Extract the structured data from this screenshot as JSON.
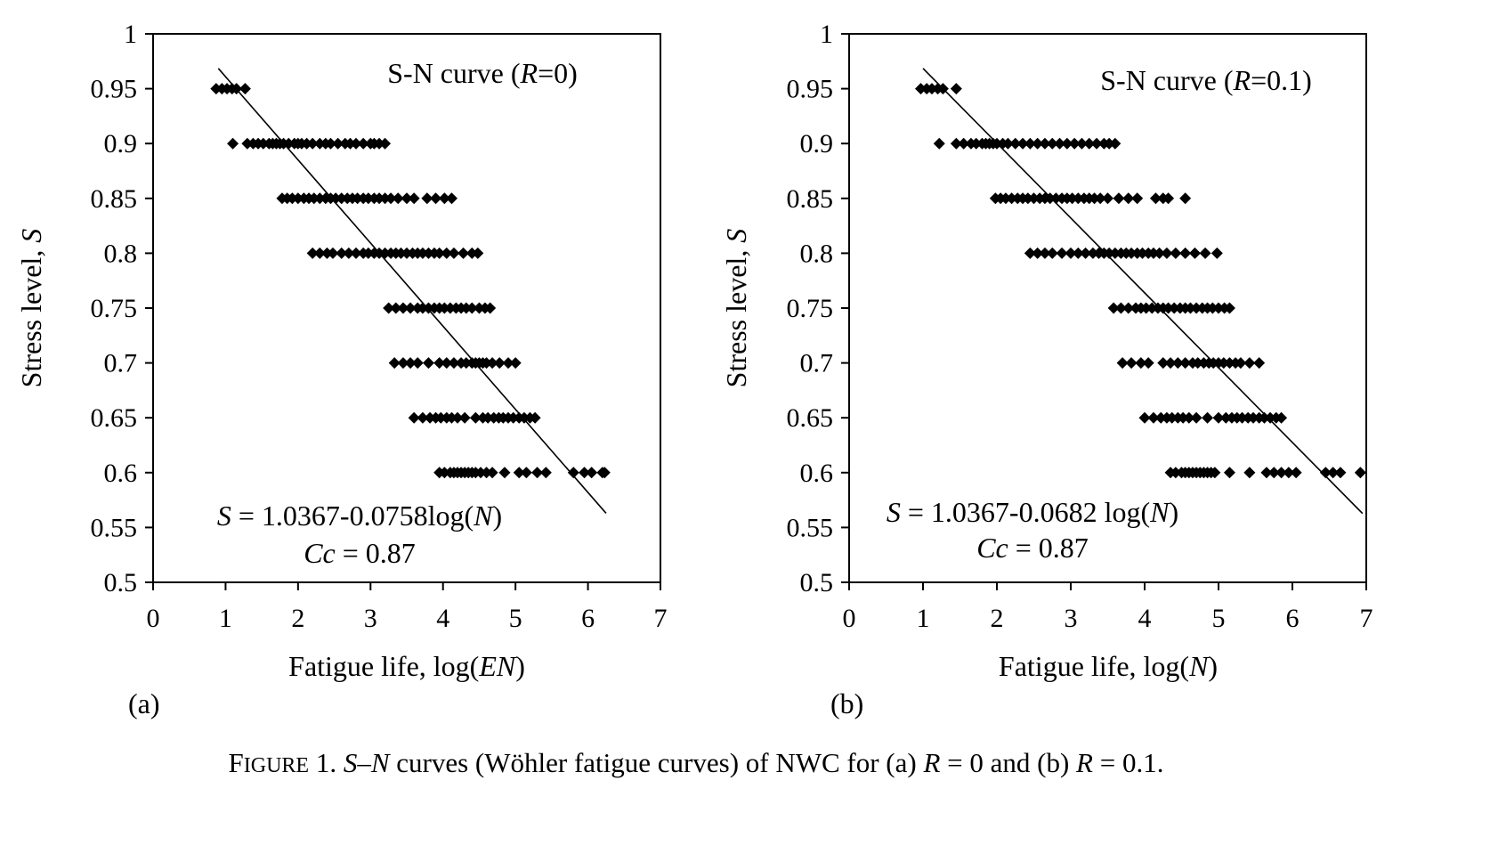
{
  "caption": {
    "prefix_initial": "F",
    "prefix_small_caps": "IGURE",
    "number": " 1. ",
    "sym_s": "S",
    "dash": "–",
    "sym_n": "N",
    "text1": " curves (Wöhler fatigue curves) of NWC for (a) ",
    "sym_r1": "R",
    "text2": " = 0 and (b) ",
    "sym_r2": "R",
    "text3": " = 0.1."
  },
  "chart_data": [
    {
      "type": "scatter",
      "panel_label": "(a)",
      "title_parts": [
        "S-N curve (",
        "R",
        "=0)"
      ],
      "xlabel_parts": [
        "Fatigue life, log(",
        "EN",
        ")"
      ],
      "ylabel_parts": [
        "Stress level, ",
        "S"
      ],
      "equation_parts": [
        "S",
        " = 1.0367-0.0758log(",
        "N",
        ")"
      ],
      "cc_parts": [
        "Cc",
        " = 0.87"
      ],
      "xlim": [
        0,
        7
      ],
      "ylim": [
        0.5,
        1
      ],
      "xticks": [
        0,
        1,
        2,
        3,
        4,
        5,
        6,
        7
      ],
      "yticks": [
        0.5,
        0.55,
        0.6,
        0.65,
        0.7,
        0.75,
        0.8,
        0.85,
        0.9,
        0.95,
        1
      ],
      "ytick_labels": [
        "0.5",
        "0.55",
        "0.6",
        "0.65",
        "0.7",
        "0.75",
        "0.8",
        "0.85",
        "0.9",
        "0.95",
        "1"
      ],
      "grid": false,
      "marker": "diamond",
      "fit_line": {
        "intercept": 1.0367,
        "slope": -0.0758,
        "x_range": [
          0.9,
          6.25
        ]
      },
      "series": [
        {
          "y": 0.95,
          "x": [
            0.87,
            0.95,
            1.02,
            1.09,
            1.15,
            1.27
          ]
        },
        {
          "y": 0.9,
          "x": [
            1.1,
            1.3,
            1.38,
            1.45,
            1.52,
            1.6,
            1.65,
            1.7,
            1.75,
            1.8,
            1.87,
            1.95,
            2.0,
            2.05,
            2.12,
            2.2,
            2.3,
            2.38,
            2.45,
            2.55,
            2.65,
            2.72,
            2.8,
            2.9,
            3.0,
            3.05,
            3.12,
            3.2
          ]
        },
        {
          "y": 0.85,
          "x": [
            1.78,
            1.85,
            1.92,
            2.0,
            2.08,
            2.15,
            2.22,
            2.3,
            2.38,
            2.45,
            2.52,
            2.6,
            2.68,
            2.75,
            2.82,
            2.9,
            2.97,
            3.05,
            3.12,
            3.2,
            3.28,
            3.38,
            3.5,
            3.6,
            3.78,
            3.9,
            4.02,
            4.12
          ]
        },
        {
          "y": 0.8,
          "x": [
            2.2,
            2.3,
            2.4,
            2.48,
            2.6,
            2.7,
            2.8,
            2.9,
            2.97,
            3.05,
            3.12,
            3.2,
            3.28,
            3.35,
            3.42,
            3.5,
            3.58,
            3.65,
            3.72,
            3.8,
            3.88,
            3.95,
            4.05,
            4.15,
            4.28,
            4.4,
            4.48
          ]
        },
        {
          "y": 0.75,
          "x": [
            3.25,
            3.35,
            3.45,
            3.55,
            3.65,
            3.72,
            3.8,
            3.88,
            3.95,
            4.02,
            4.1,
            4.18,
            4.25,
            4.32,
            4.4,
            4.5,
            4.58,
            4.65
          ]
        },
        {
          "y": 0.7,
          "x": [
            3.33,
            3.45,
            3.55,
            3.65,
            3.8,
            3.95,
            4.05,
            4.15,
            4.25,
            4.32,
            4.4,
            4.45,
            4.5,
            4.55,
            4.6,
            4.68,
            4.78,
            4.9,
            5.0
          ]
        },
        {
          "y": 0.65,
          "x": [
            3.6,
            3.72,
            3.82,
            3.9,
            3.97,
            4.05,
            4.12,
            4.2,
            4.3,
            4.45,
            4.55,
            4.62,
            4.7,
            4.77,
            4.83,
            4.9,
            4.97,
            5.05,
            5.12,
            5.2,
            5.27
          ]
        },
        {
          "y": 0.6,
          "x": [
            3.95,
            4.02,
            4.1,
            4.15,
            4.2,
            4.25,
            4.3,
            4.35,
            4.4,
            4.45,
            4.52,
            4.6,
            4.68,
            4.85,
            5.05,
            5.15,
            5.3,
            5.42,
            5.8,
            5.95,
            6.05,
            6.2,
            6.23
          ]
        }
      ]
    },
    {
      "type": "scatter",
      "panel_label": "(b)",
      "title_parts": [
        "S-N curve (",
        "R",
        "=0.1)"
      ],
      "xlabel_parts": [
        "Fatigue life, log(",
        "N",
        ")"
      ],
      "ylabel_parts": [
        "Stress level, ",
        "S"
      ],
      "equation_parts": [
        "S",
        " = 1.0367-0.0682 log(",
        "N",
        ")"
      ],
      "cc_parts": [
        "Cc",
        " = 0.87"
      ],
      "xlim": [
        0,
        7
      ],
      "ylim": [
        0.5,
        1
      ],
      "xticks": [
        0,
        1,
        2,
        3,
        4,
        5,
        6,
        7
      ],
      "yticks": [
        0.5,
        0.55,
        0.6,
        0.65,
        0.7,
        0.75,
        0.8,
        0.85,
        0.9,
        0.95,
        1
      ],
      "ytick_labels": [
        "0.5",
        "0.55",
        "0.6",
        "0.65",
        "0.7",
        "0.75",
        "0.8",
        "0.85",
        "0.9",
        "0.95",
        "1"
      ],
      "grid": false,
      "marker": "diamond",
      "fit_line": {
        "intercept": 1.0367,
        "slope": -0.0682,
        "x_range": [
          1.0,
          6.95
        ]
      },
      "series": [
        {
          "y": 0.95,
          "x": [
            0.97,
            1.05,
            1.12,
            1.2,
            1.27,
            1.45
          ]
        },
        {
          "y": 0.9,
          "x": [
            1.22,
            1.45,
            1.55,
            1.65,
            1.72,
            1.8,
            1.85,
            1.9,
            1.95,
            2.0,
            2.08,
            2.15,
            2.25,
            2.35,
            2.45,
            2.55,
            2.65,
            2.75,
            2.85,
            2.95,
            3.05,
            3.15,
            3.25,
            3.35,
            3.45,
            3.52,
            3.6
          ]
        },
        {
          "y": 0.85,
          "x": [
            1.98,
            2.05,
            2.12,
            2.2,
            2.28,
            2.35,
            2.42,
            2.5,
            2.58,
            2.65,
            2.72,
            2.8,
            2.88,
            2.95,
            3.02,
            3.1,
            3.18,
            3.25,
            3.32,
            3.4,
            3.5,
            3.65,
            3.78,
            3.9,
            4.15,
            4.25,
            4.32,
            4.55
          ]
        },
        {
          "y": 0.8,
          "x": [
            2.45,
            2.55,
            2.65,
            2.75,
            2.88,
            3.0,
            3.1,
            3.2,
            3.3,
            3.38,
            3.45,
            3.52,
            3.6,
            3.68,
            3.75,
            3.82,
            3.9,
            3.97,
            4.05,
            4.12,
            4.2,
            4.3,
            4.42,
            4.55,
            4.68,
            4.82,
            4.98
          ]
        },
        {
          "y": 0.75,
          "x": [
            3.58,
            3.68,
            3.78,
            3.88,
            3.95,
            4.02,
            4.1,
            4.18,
            4.25,
            4.32,
            4.4,
            4.48,
            4.55,
            4.62,
            4.7,
            4.78,
            4.85,
            4.92,
            5.0,
            5.08,
            5.15
          ]
        },
        {
          "y": 0.7,
          "x": [
            3.7,
            3.82,
            3.95,
            4.05,
            4.25,
            4.35,
            4.45,
            4.55,
            4.65,
            4.72,
            4.8,
            4.87,
            4.93,
            5.0,
            5.07,
            5.15,
            5.23,
            5.3,
            5.42,
            5.55
          ]
        },
        {
          "y": 0.65,
          "x": [
            4.0,
            4.12,
            4.22,
            4.3,
            4.37,
            4.45,
            4.52,
            4.6,
            4.7,
            4.85,
            5.0,
            5.1,
            5.18,
            5.25,
            5.32,
            5.4,
            5.47,
            5.55,
            5.62,
            5.7,
            5.78,
            5.85
          ]
        },
        {
          "y": 0.6,
          "x": [
            4.35,
            4.42,
            4.5,
            4.55,
            4.6,
            4.65,
            4.7,
            4.75,
            4.8,
            4.85,
            4.9,
            4.95,
            5.15,
            5.42,
            5.65,
            5.75,
            5.85,
            5.95,
            6.05,
            6.45,
            6.55,
            6.65,
            6.92
          ]
        }
      ]
    }
  ]
}
